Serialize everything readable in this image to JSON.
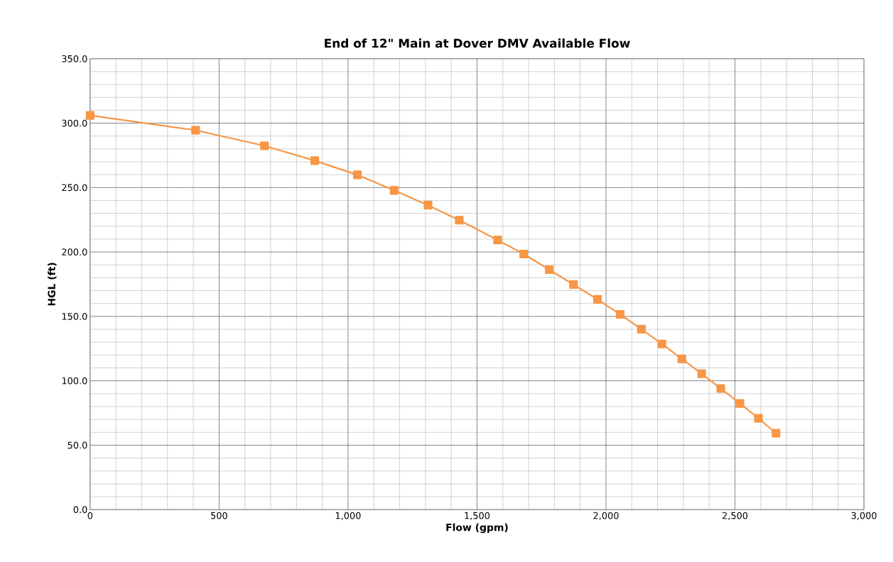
{
  "chart_data": {
    "type": "line",
    "title": "End of 12\" Main at Dover DMV Available Flow",
    "xlabel": "Flow (gpm)",
    "ylabel": "HGL (ft)",
    "x": [
      0,
      409,
      676,
      871,
      1036,
      1179,
      1310,
      1431,
      1580,
      1681,
      1780,
      1874,
      1967,
      2055,
      2137,
      2217,
      2294,
      2371,
      2445,
      2519,
      2591,
      2659
    ],
    "series": [
      {
        "color": "#f79646",
        "values": [
          306,
          294.5,
          282.4,
          270.9,
          259.9,
          247.8,
          236.3,
          224.7,
          209.3,
          198.4,
          186.3,
          174.7,
          163.2,
          151.6,
          140.1,
          128.6,
          117.0,
          105.5,
          94.0,
          82.4,
          70.9,
          59.3
        ]
      }
    ],
    "xlim": [
      0,
      3000
    ],
    "ylim": [
      0,
      350
    ],
    "xticks": [
      0,
      500,
      {
        "value": 1000,
        "label": "1,000"
      },
      {
        "value": 1500,
        "label": "1,500"
      },
      {
        "value": 2000,
        "label": "2,000"
      },
      {
        "value": 2500,
        "label": "2,500"
      },
      {
        "value": 3000,
        "label": "3,000"
      }
    ],
    "yticks": [
      {
        "value": 0,
        "label": "0.0"
      },
      {
        "value": 50,
        "label": "50.0"
      },
      {
        "value": 100,
        "label": "100.0"
      },
      {
        "value": 150,
        "label": "150.0"
      },
      {
        "value": 200,
        "label": "200.0"
      },
      {
        "value": 250,
        "label": "250.0"
      },
      {
        "value": 300,
        "label": "300.0"
      },
      {
        "value": 350,
        "label": "350.0"
      }
    ],
    "grid": true,
    "marker": "square",
    "line_style": "solid"
  }
}
